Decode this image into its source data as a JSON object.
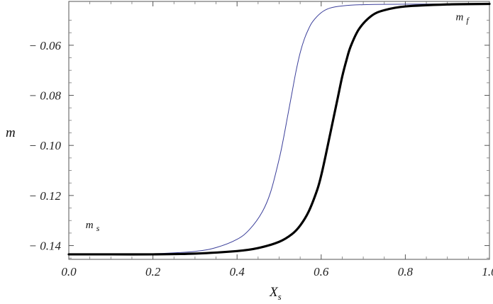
{
  "chart_data": {
    "type": "line",
    "title": "",
    "xlabel": "X",
    "xlabel_sub": "s",
    "ylabel": "m",
    "xlim": [
      0.0,
      1.0
    ],
    "ylim": [
      -0.1455,
      -0.0425
    ],
    "x_ticks": [
      0.0,
      0.2,
      0.4,
      0.6,
      0.8,
      1.0
    ],
    "x_tick_labels": [
      "0.0",
      "0.2",
      "0.4",
      "0.6",
      "0.8",
      "1.0"
    ],
    "y_ticks": [
      -0.06,
      -0.08,
      -0.1,
      -0.12,
      -0.14
    ],
    "y_tick_labels": [
      "− 0.06",
      "− 0.08",
      "− 0.10",
      "− 0.12",
      "− 0.14"
    ],
    "grid": false,
    "annotations": [
      {
        "text": "m",
        "sub": "f",
        "x": 0.92,
        "y": -0.05
      },
      {
        "text": "m",
        "sub": "s",
        "x": 0.04,
        "y": -0.133
      }
    ],
    "series": [
      {
        "style": "thin",
        "color": "#3b3f9a",
        "x": [
          0.0,
          0.1,
          0.2,
          0.3,
          0.35,
          0.4,
          0.43,
          0.46,
          0.48,
          0.5,
          0.51,
          0.52,
          0.53,
          0.54,
          0.55,
          0.56,
          0.57,
          0.58,
          0.6,
          0.62,
          0.65,
          0.7,
          0.8,
          1.0
        ],
        "y": [
          -0.1435,
          -0.1435,
          -0.1433,
          -0.1423,
          -0.1408,
          -0.1375,
          -0.1335,
          -0.1265,
          -0.1185,
          -0.1055,
          -0.0975,
          -0.0885,
          -0.0795,
          -0.0705,
          -0.063,
          -0.0575,
          -0.0535,
          -0.0505,
          -0.047,
          -0.0452,
          -0.0443,
          -0.0438,
          -0.0436,
          -0.0435
        ]
      },
      {
        "style": "thick",
        "color": "#000000",
        "x": [
          0.0,
          0.1,
          0.2,
          0.3,
          0.4,
          0.45,
          0.5,
          0.53,
          0.55,
          0.57,
          0.59,
          0.6,
          0.61,
          0.62,
          0.63,
          0.64,
          0.65,
          0.66,
          0.67,
          0.69,
          0.72,
          0.75,
          0.8,
          0.9,
          1.0
        ],
        "y": [
          -0.1435,
          -0.1435,
          -0.1435,
          -0.1432,
          -0.1422,
          -0.141,
          -0.1385,
          -0.1355,
          -0.132,
          -0.1265,
          -0.118,
          -0.112,
          -0.1045,
          -0.0965,
          -0.0885,
          -0.0805,
          -0.0725,
          -0.066,
          -0.0605,
          -0.0535,
          -0.0482,
          -0.046,
          -0.0445,
          -0.0437,
          -0.0435
        ]
      }
    ]
  }
}
